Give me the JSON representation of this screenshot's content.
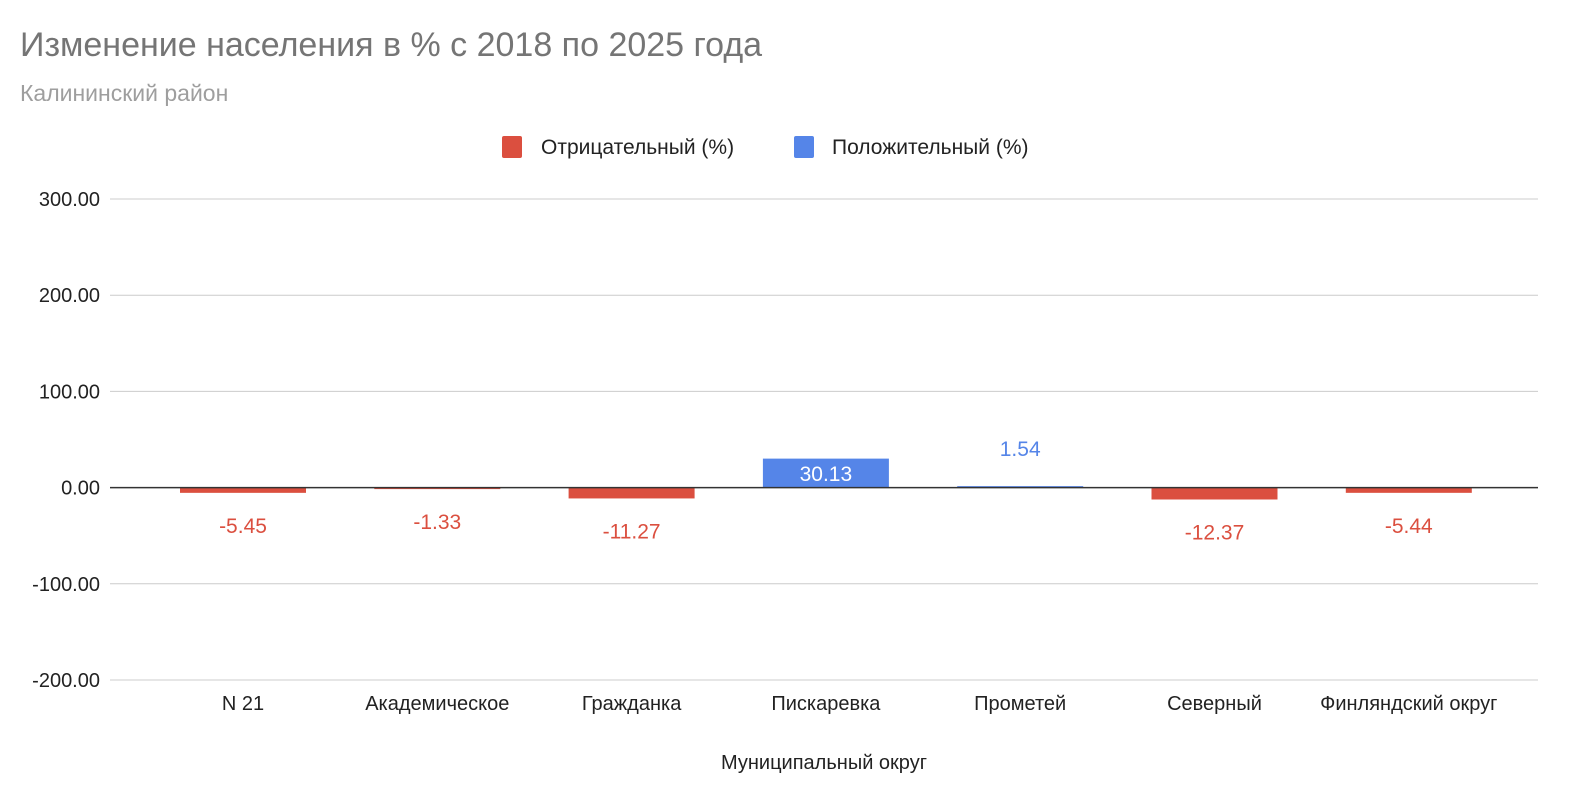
{
  "chart_data": {
    "type": "bar",
    "title": "Изменение населения в % с 2018 по 2025 года",
    "subtitle": "Калининский район",
    "xlabel": "Муниципальный округ",
    "ylabel": "",
    "ylim": [
      -200,
      300
    ],
    "yticks": [
      300,
      200,
      100,
      0,
      -100,
      -200
    ],
    "ytick_labels": [
      "300.00",
      "200.00",
      "100.00",
      "0.00",
      "-100.00",
      "-200.00"
    ],
    "grid": true,
    "legend_position": "top-center",
    "categories": [
      "N 21",
      "Академическое",
      "Гражданка",
      "Пискаревка",
      "Прометей",
      "Северный",
      "Финляндский округ"
    ],
    "series": [
      {
        "name": "Отрицательный (%)",
        "color": "#db4f3f",
        "values": [
          -5.45,
          -1.33,
          -11.27,
          null,
          null,
          -12.37,
          -5.44
        ]
      },
      {
        "name": "Положительный (%)",
        "color": "#5585e8",
        "values": [
          null,
          null,
          null,
          30.13,
          1.54,
          null,
          null
        ]
      }
    ],
    "data_labels": [
      "-5.45",
      "-1.33",
      "-11.27",
      "30.13",
      "1.54",
      "-12.37",
      "-5.44"
    ]
  }
}
